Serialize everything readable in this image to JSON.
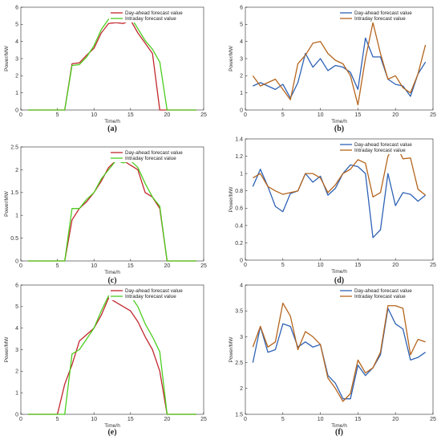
{
  "figure": {
    "background": "#ffffff"
  },
  "chart_data": [
    {
      "id": "a",
      "caption": "(a)",
      "type": "line",
      "xlabel": "Time/h",
      "ylabel": "Power/MW",
      "xlim": [
        0,
        25
      ],
      "ylim": [
        0,
        6
      ],
      "xticks": [
        0,
        5,
        10,
        15,
        20,
        25
      ],
      "yticks": [
        0,
        1,
        2,
        3,
        4,
        5,
        6
      ],
      "legend": "top-right",
      "x": [
        1,
        2,
        3,
        4,
        5,
        6,
        7,
        8,
        9,
        10,
        11,
        12,
        13,
        14,
        15,
        16,
        17,
        18,
        19,
        20,
        21,
        22,
        23,
        24
      ],
      "series": [
        {
          "name": "Day-ahead forecast value",
          "color": "#c1272d",
          "values": [
            0,
            0,
            0,
            0,
            0,
            0,
            2.7,
            2.75,
            3.2,
            3.6,
            4.5,
            5.05,
            5.1,
            5.05,
            5.25,
            4.5,
            3.9,
            3.3,
            0,
            0,
            0,
            0,
            0,
            0
          ]
        },
        {
          "name": "Intraday forecast value",
          "color": "#4ccd1f",
          "values": [
            0,
            0,
            0,
            0,
            0,
            0,
            2.6,
            2.65,
            3.1,
            3.75,
            4.7,
            5.3,
            5.4,
            5.35,
            5.45,
            4.75,
            4.05,
            3.55,
            2.8,
            0,
            0,
            0,
            0,
            0
          ]
        }
      ]
    },
    {
      "id": "b",
      "caption": "(b)",
      "type": "line",
      "xlabel": "Time/h",
      "ylabel": "Power/MW",
      "xlim": [
        0,
        25
      ],
      "ylim": [
        0,
        6
      ],
      "xticks": [
        0,
        5,
        10,
        15,
        20,
        25
      ],
      "yticks": [
        0,
        1,
        2,
        3,
        4,
        5,
        6
      ],
      "legend": "top-right",
      "x": [
        1,
        2,
        3,
        4,
        5,
        6,
        7,
        8,
        9,
        10,
        11,
        12,
        13,
        14,
        15,
        16,
        17,
        18,
        19,
        20,
        21,
        22,
        23,
        24
      ],
      "series": [
        {
          "name": "Day-ahead forecast value",
          "color": "#2e62b5",
          "values": [
            1.4,
            1.6,
            1.4,
            1.2,
            1.5,
            0.7,
            1.6,
            3.3,
            2.5,
            3.0,
            2.3,
            2.6,
            2.5,
            2.2,
            1.2,
            4.2,
            3.1,
            3.1,
            1.8,
            1.5,
            1.4,
            0.8,
            2.1,
            2.8
          ]
        },
        {
          "name": "Intraday forecast value",
          "color": "#b5651d",
          "values": [
            2.0,
            1.4,
            1.6,
            1.8,
            1.2,
            0.6,
            2.7,
            3.2,
            3.9,
            4.0,
            3.3,
            2.9,
            2.7,
            2.0,
            0.3,
            3.0,
            5.1,
            3.3,
            1.8,
            2.0,
            1.3,
            1.0,
            2.1,
            3.8
          ]
        }
      ]
    },
    {
      "id": "c",
      "caption": "(c)",
      "type": "line",
      "xlabel": "Time/h",
      "ylabel": "Power/MW",
      "xlim": [
        0,
        25
      ],
      "ylim": [
        0,
        2.5
      ],
      "xticks": [
        0,
        5,
        10,
        15,
        20,
        25
      ],
      "yticks": [
        0,
        0.5,
        1,
        1.5,
        2,
        2.5
      ],
      "legend": "top-right",
      "x": [
        1,
        2,
        3,
        4,
        5,
        6,
        7,
        8,
        9,
        10,
        11,
        12,
        13,
        14,
        15,
        16,
        17,
        18,
        19,
        20,
        21,
        22,
        23,
        24
      ],
      "series": [
        {
          "name": "Day-ahead forecast value",
          "color": "#c1272d",
          "values": [
            0,
            0,
            0,
            0,
            0,
            0,
            0.9,
            1.15,
            1.3,
            1.5,
            1.75,
            2.05,
            2.2,
            2.2,
            2.1,
            2.0,
            1.5,
            1.4,
            1.15,
            0,
            0,
            0,
            0,
            0
          ]
        },
        {
          "name": "Intraday forecast value",
          "color": "#4ccd1f",
          "values": [
            0,
            0,
            0,
            0,
            0,
            0,
            1.15,
            1.15,
            1.35,
            1.5,
            1.8,
            2.0,
            2.2,
            2.15,
            2.2,
            2.05,
            1.7,
            1.4,
            1.2,
            0,
            0,
            0,
            0,
            0
          ]
        }
      ]
    },
    {
      "id": "d",
      "caption": "(d)",
      "type": "line",
      "xlabel": "Time/h",
      "ylabel": "Power/MW",
      "xlim": [
        0,
        25
      ],
      "ylim": [
        0,
        1.4
      ],
      "xticks": [
        0,
        5,
        10,
        15,
        20,
        25
      ],
      "yticks": [
        0,
        0.2,
        0.4,
        0.6,
        0.8,
        1,
        1.2,
        1.4
      ],
      "legend": "top-right",
      "x": [
        1,
        2,
        3,
        4,
        5,
        6,
        7,
        8,
        9,
        10,
        11,
        12,
        13,
        14,
        15,
        16,
        17,
        18,
        19,
        20,
        21,
        22,
        23,
        24
      ],
      "series": [
        {
          "name": "Day-ahead forecast value",
          "color": "#2e62b5",
          "values": [
            0.85,
            1.05,
            0.85,
            0.62,
            0.56,
            0.77,
            0.8,
            1.0,
            0.9,
            0.97,
            0.75,
            0.83,
            1.0,
            1.1,
            1.08,
            1.0,
            0.26,
            0.35,
            1.0,
            0.63,
            0.78,
            0.76,
            0.68,
            0.75
          ]
        },
        {
          "name": "Intraday forecast value",
          "color": "#b5651d",
          "values": [
            0.95,
            1.0,
            0.85,
            0.8,
            0.76,
            0.78,
            0.8,
            1.0,
            1.0,
            0.95,
            0.78,
            0.87,
            1.0,
            1.05,
            1.16,
            1.12,
            0.73,
            0.78,
            1.2,
            1.35,
            1.17,
            1.18,
            0.82,
            0.75
          ]
        }
      ]
    },
    {
      "id": "e",
      "caption": "(e)",
      "type": "line",
      "xlabel": "Time/h",
      "ylabel": "Power/MW",
      "xlim": [
        0,
        25
      ],
      "ylim": [
        0,
        6
      ],
      "xticks": [
        0,
        5,
        10,
        15,
        20,
        25
      ],
      "yticks": [
        0,
        1,
        2,
        3,
        4,
        5,
        6
      ],
      "legend": "top-right",
      "x": [
        1,
        2,
        3,
        4,
        5,
        6,
        7,
        8,
        9,
        10,
        11,
        12,
        13,
        14,
        15,
        16,
        17,
        18,
        19,
        20,
        21,
        22,
        23,
        24
      ],
      "series": [
        {
          "name": "Day-ahead forecast value",
          "color": "#c1272d",
          "values": [
            0,
            0,
            0,
            0,
            0,
            1.4,
            2.3,
            3.4,
            3.7,
            4.0,
            4.6,
            5.4,
            5.2,
            5.0,
            4.8,
            4.3,
            3.6,
            3.0,
            2.0,
            0,
            0,
            0,
            0,
            0
          ]
        },
        {
          "name": "Intraday forecast value",
          "color": "#4ccd1f",
          "values": [
            0,
            0,
            0,
            0,
            0,
            0,
            2.8,
            3.0,
            3.5,
            4.0,
            4.8,
            5.5,
            5.4,
            5.4,
            5.5,
            5.0,
            4.2,
            3.6,
            2.9,
            0,
            0,
            0,
            0,
            0
          ]
        }
      ]
    },
    {
      "id": "f",
      "caption": "(f)",
      "type": "line",
      "xlabel": "Time/h",
      "ylabel": "Power/MW",
      "xlim": [
        0,
        25
      ],
      "ylim": [
        1.5,
        4
      ],
      "xticks": [
        0,
        5,
        10,
        15,
        20,
        25
      ],
      "yticks": [
        1.5,
        2,
        2.5,
        3,
        3.5,
        4
      ],
      "legend": "top-right",
      "x": [
        1,
        2,
        3,
        4,
        5,
        6,
        7,
        8,
        9,
        10,
        11,
        12,
        13,
        14,
        15,
        16,
        17,
        18,
        19,
        20,
        21,
        22,
        23,
        24
      ],
      "series": [
        {
          "name": "Day-ahead forecast value",
          "color": "#2e62b5",
          "values": [
            2.5,
            3.2,
            2.7,
            2.75,
            3.25,
            3.2,
            2.8,
            2.9,
            2.8,
            2.85,
            2.25,
            2.1,
            1.8,
            1.8,
            2.45,
            2.25,
            2.4,
            2.65,
            3.55,
            3.25,
            3.15,
            2.55,
            2.6,
            2.7
          ]
        },
        {
          "name": "Intraday forecast value",
          "color": "#b5651d",
          "values": [
            2.8,
            3.2,
            2.8,
            2.9,
            3.65,
            3.4,
            2.75,
            3.1,
            3.0,
            2.85,
            2.2,
            2.0,
            1.75,
            1.9,
            2.55,
            2.3,
            2.4,
            2.7,
            3.6,
            3.6,
            3.55,
            2.65,
            2.95,
            2.9
          ]
        }
      ]
    }
  ]
}
